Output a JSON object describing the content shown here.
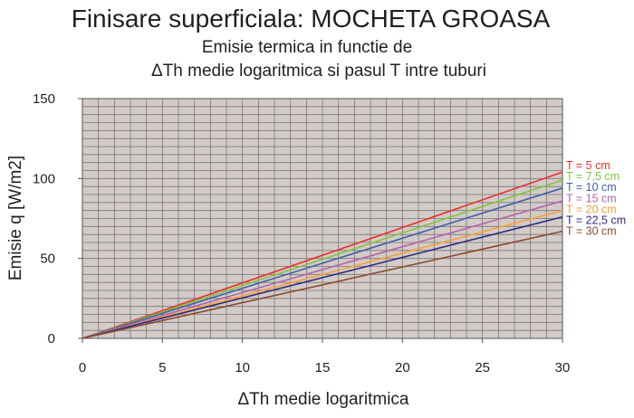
{
  "chart_data": {
    "type": "line",
    "title": "Finisare superficiala: MOCHETA GROASA",
    "subtitle_line1": "Emisie termica in functie de",
    "subtitle_line2": "ΔTh medie logaritmica  si pasul T intre tuburi",
    "xlabel": "ΔTh medie logaritmica",
    "ylabel": "Emisie q [W/m2]",
    "xlim": [
      0,
      30
    ],
    "ylim": [
      0,
      150
    ],
    "xticks": [
      0,
      5,
      10,
      15,
      20,
      25,
      30
    ],
    "yticks": [
      0,
      50,
      100,
      150
    ],
    "grid": true,
    "legend_placement": "right",
    "plot_background": "#d3cbc8",
    "grid_color": "#777777",
    "series": [
      {
        "name": "T = 5 cm",
        "color": "#e8312b",
        "x": [
          0,
          30
        ],
        "y": [
          0,
          104
        ]
      },
      {
        "name": "T = 7,5 cm",
        "color": "#84c440",
        "x": [
          0,
          30
        ],
        "y": [
          0,
          99
        ]
      },
      {
        "name": "T = 10 cm",
        "color": "#3f5fab",
        "x": [
          0,
          30
        ],
        "y": [
          0,
          94
        ]
      },
      {
        "name": "T = 15 cm",
        "color": "#b565a7",
        "x": [
          0,
          30
        ],
        "y": [
          0,
          86
        ]
      },
      {
        "name": "T = 20 cm",
        "color": "#f6a13a",
        "x": [
          0,
          30
        ],
        "y": [
          0,
          80
        ]
      },
      {
        "name": "T = 22,5 cm",
        "color": "#2e2a7d",
        "x": [
          0,
          30
        ],
        "y": [
          0,
          76
        ]
      },
      {
        "name": "T = 30 cm",
        "color": "#8a4b2e",
        "x": [
          0,
          30
        ],
        "y": [
          0,
          67
        ]
      }
    ]
  }
}
